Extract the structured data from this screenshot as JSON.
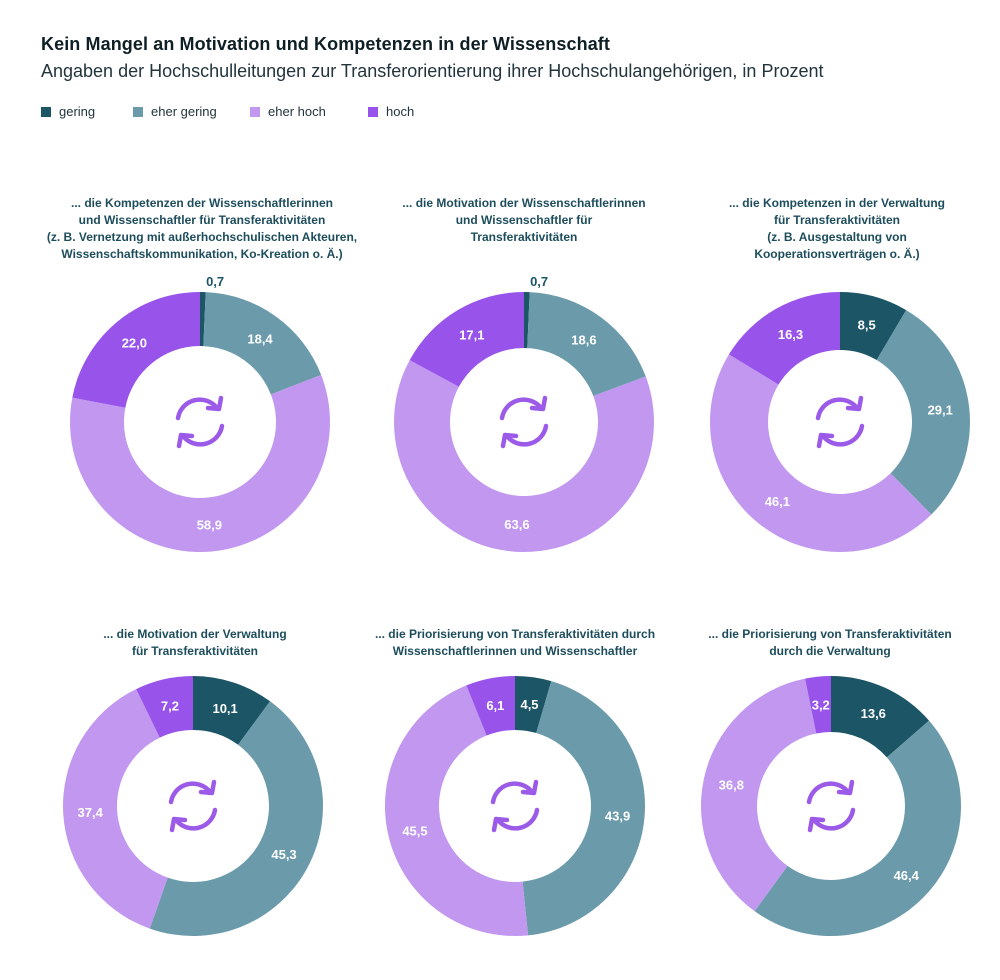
{
  "header": {
    "title": "Kein Mangel an Motivation und Kompetenzen in der Wissenschaft",
    "subtitle": "Angaben der Hochschulleitungen zur Transferorientierung ihrer Hochschulangehörigen, in Prozent"
  },
  "legend": [
    {
      "label": "gering",
      "color": "#1b5566"
    },
    {
      "label": "eher gering",
      "color": "#6b9bab"
    },
    {
      "label": "eher hoch",
      "color": "#c197f0"
    },
    {
      "label": "hoch",
      "color": "#9853ea"
    }
  ],
  "icon": {
    "name": "refresh-cycle-icon",
    "color": "#9c5ae8"
  },
  "chart_data": [
    {
      "type": "pie",
      "subtype": "donut",
      "title_lines": [
        "... die Kompetenzen der Wissenschaftlerinnen",
        "und Wissenschaftler für Transferaktivitäten",
        "(z. B. Vernetzung mit außerhochschulischen Akteuren,",
        "Wissenschaftskommunikation, Ko-Kreation o. Ä.)"
      ],
      "categories": [
        "gering",
        "eher gering",
        "eher hoch",
        "hoch"
      ],
      "values": [
        0.7,
        18.4,
        58.9,
        22.0
      ],
      "labels": [
        "0,7",
        "18,4",
        "58,9",
        "22,0"
      ]
    },
    {
      "type": "pie",
      "subtype": "donut",
      "title_lines": [
        "... die Motivation der Wissenschaftlerinnen",
        "und Wissenschaftler für",
        "Transferaktivitäten"
      ],
      "categories": [
        "gering",
        "eher gering",
        "eher hoch",
        "hoch"
      ],
      "values": [
        0.7,
        18.6,
        63.6,
        17.1
      ],
      "labels": [
        "0,7",
        "18,6",
        "63,6",
        "17,1"
      ]
    },
    {
      "type": "pie",
      "subtype": "donut",
      "title_lines": [
        "... die Kompetenzen in der Verwaltung",
        "für Transferaktivitäten",
        "(z. B. Ausgestaltung von",
        "Kooperationsverträgen o. Ä.)"
      ],
      "categories": [
        "gering",
        "eher gering",
        "eher hoch",
        "hoch"
      ],
      "values": [
        8.5,
        29.1,
        46.1,
        16.3
      ],
      "labels": [
        "8,5",
        "29,1",
        "46,1",
        "16,3"
      ]
    },
    {
      "type": "pie",
      "subtype": "donut",
      "title_lines": [
        "... die Motivation der Verwaltung",
        "für Transferaktivitäten"
      ],
      "categories": [
        "gering",
        "eher gering",
        "eher hoch",
        "hoch"
      ],
      "values": [
        10.1,
        45.3,
        37.4,
        7.2
      ],
      "labels": [
        "10,1",
        "45,3",
        "37,4",
        "7,2"
      ]
    },
    {
      "type": "pie",
      "subtype": "donut",
      "title_lines": [
        "... die Priorisierung von Transferaktivitäten durch",
        "Wissenschaftlerinnen und Wissenschaftler"
      ],
      "categories": [
        "gering",
        "eher gering",
        "eher hoch",
        "hoch"
      ],
      "values": [
        4.5,
        43.9,
        45.5,
        6.1
      ],
      "labels": [
        "4,5",
        "43,9",
        "45,5",
        "6,1"
      ]
    },
    {
      "type": "pie",
      "subtype": "donut",
      "title_lines": [
        "... die Priorisierung von Transferaktivitäten",
        "durch die Verwaltung"
      ],
      "categories": [
        "gering",
        "eher gering",
        "eher hoch",
        "hoch"
      ],
      "values": [
        13.6,
        46.4,
        36.8,
        3.2
      ],
      "labels": [
        "13,6",
        "46,4",
        "36,8",
        "3,2"
      ]
    }
  ]
}
